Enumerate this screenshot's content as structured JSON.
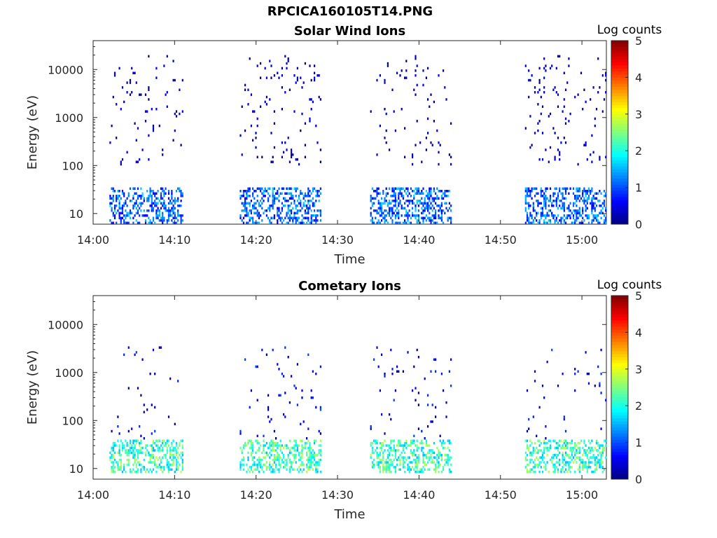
{
  "figure": {
    "title": "RPCICA160105T14.PNG"
  },
  "colorbar": {
    "label": "Log counts",
    "ticks": [
      "0",
      "1",
      "2",
      "3",
      "4",
      "5"
    ],
    "range": [
      0,
      5
    ],
    "colormap": "jet"
  },
  "chart_data": [
    {
      "type": "heatmap",
      "title": "Solar Wind Ions",
      "xlabel": "Time",
      "ylabel": "Energy (eV)",
      "xticks": [
        "14:00",
        "14:10",
        "14:20",
        "14:30",
        "14:40",
        "14:50",
        "15:00"
      ],
      "yticks": [
        "10",
        "100",
        "1000",
        "10000"
      ],
      "xlim": [
        "14:00",
        "15:03"
      ],
      "ylim": [
        6,
        40000
      ],
      "yscale": "log",
      "grid": false,
      "colorbar_label": "Log counts",
      "measurement_windows": [
        [
          "14:02",
          "14:11"
        ],
        [
          "14:18",
          "14:28"
        ],
        [
          "14:34",
          "14:44"
        ],
        [
          "14:53",
          "15:03"
        ]
      ],
      "bands": [
        {
          "energy_range_eV": [
            6,
            35
          ],
          "log_counts_range": [
            0.5,
            1.7
          ],
          "description": "dense low-energy band"
        },
        {
          "energy_range_eV": [
            100,
            20000
          ],
          "log_counts_range": [
            0,
            0.6
          ],
          "description": "sparse scattered counts"
        }
      ]
    },
    {
      "type": "heatmap",
      "title": "Cometary Ions",
      "xlabel": "Time",
      "ylabel": "Energy (eV)",
      "xticks": [
        "14:00",
        "14:10",
        "14:20",
        "14:30",
        "14:40",
        "14:50",
        "15:00"
      ],
      "yticks": [
        "10",
        "100",
        "1000",
        "10000"
      ],
      "xlim": [
        "14:00",
        "15:03"
      ],
      "ylim": [
        6,
        40000
      ],
      "yscale": "log",
      "grid": false,
      "colorbar_label": "Log counts",
      "measurement_windows": [
        [
          "14:02",
          "14:11"
        ],
        [
          "14:18",
          "14:28"
        ],
        [
          "14:34",
          "14:44"
        ],
        [
          "14:53",
          "15:03"
        ]
      ],
      "bands": [
        {
          "energy_range_eV": [
            8,
            40
          ],
          "log_counts_range": [
            1.5,
            2.8
          ],
          "description": "intense low-energy band"
        },
        {
          "energy_range_eV": [
            40,
            3500
          ],
          "log_counts_range": [
            0,
            1.0
          ],
          "description": "periodic energy sweeps"
        }
      ]
    }
  ]
}
